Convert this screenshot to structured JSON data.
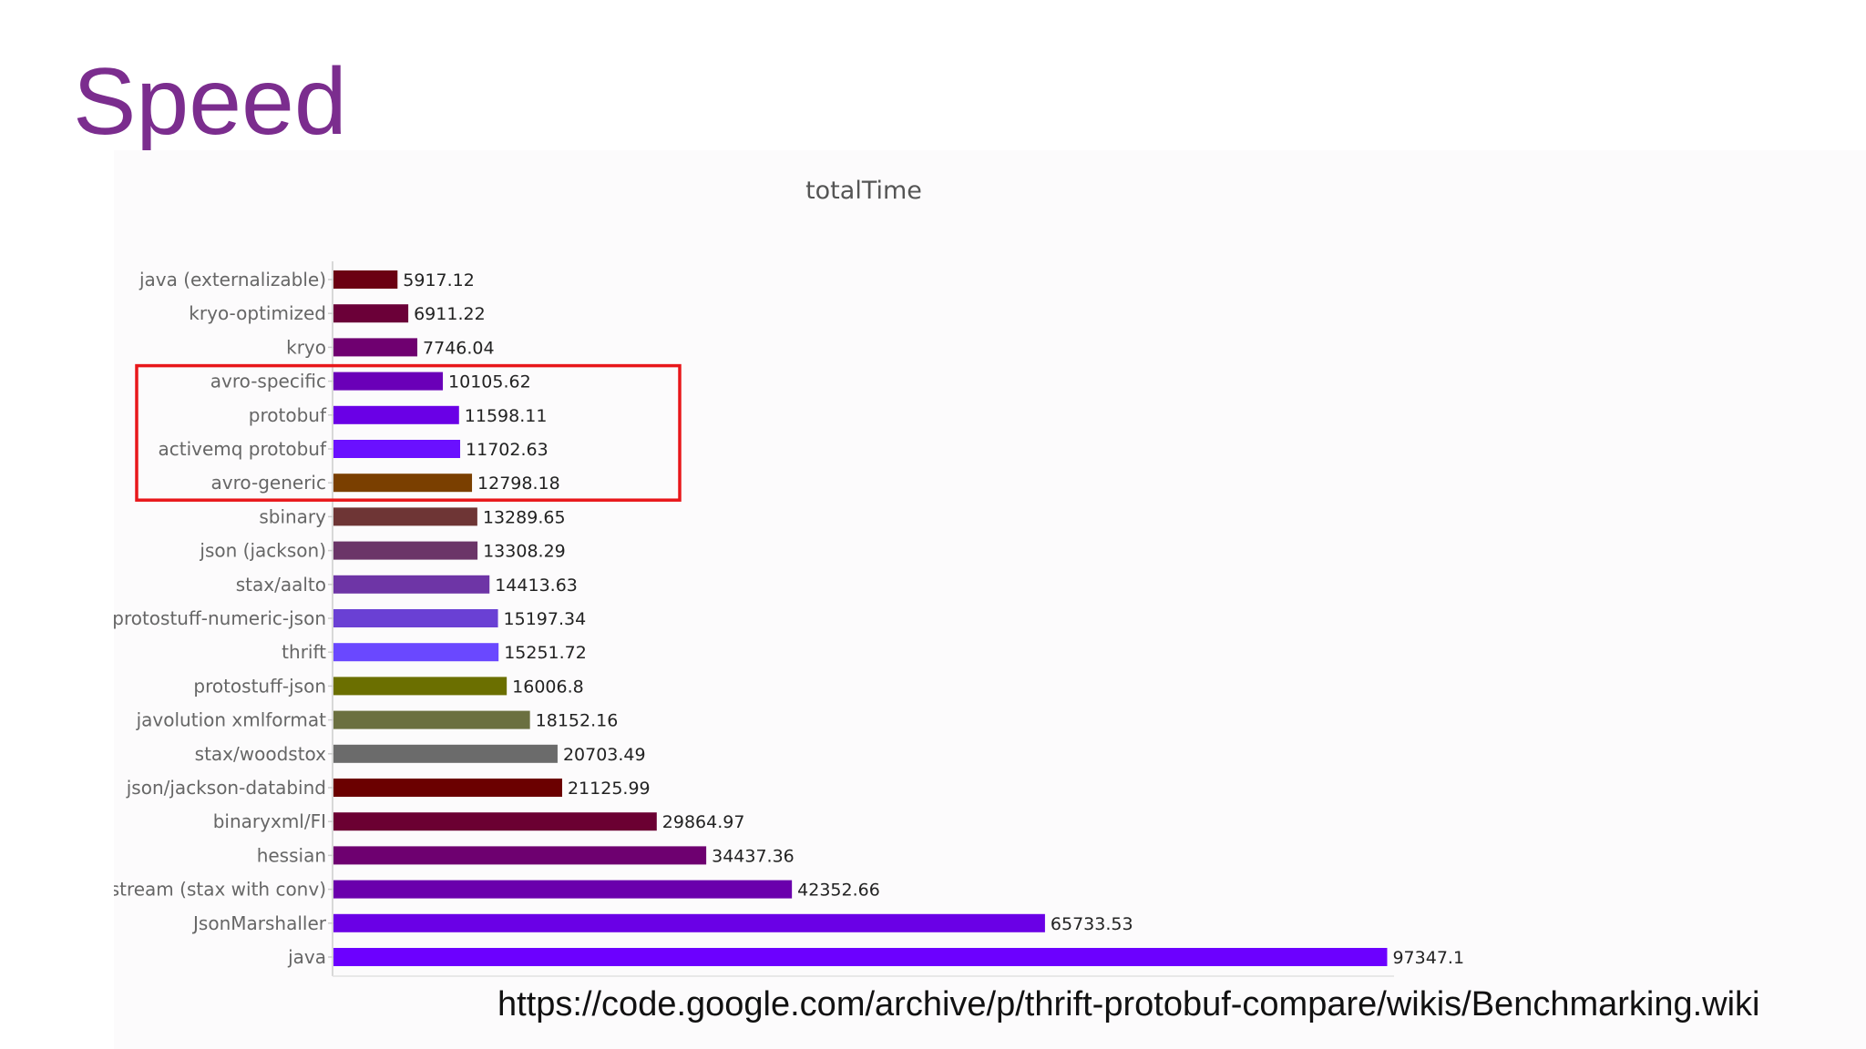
{
  "slide": {
    "title": "Speed",
    "source_url": "https://code.google.com/archive/p/thrift-protobuf-compare/wikis/Benchmarking.wiki"
  },
  "highlight": {
    "color": "#e8171b",
    "from_category": "avro-specific",
    "to_category": "avro-generic"
  },
  "chart_data": {
    "type": "bar",
    "orientation": "horizontal",
    "title": "totalTime",
    "xlabel": "",
    "ylabel": "",
    "xlim": [
      0,
      100000
    ],
    "grid": false,
    "legend": "none",
    "categories": [
      "java (externalizable)",
      "kryo-optimized",
      "kryo",
      "avro-specific",
      "protobuf",
      "activemq protobuf",
      "avro-generic",
      "sbinary",
      "json (jackson)",
      "stax/aalto",
      "protostuff-numeric-json",
      "thrift",
      "protostuff-json",
      "javolution xmlformat",
      "stax/woodstox",
      "json/jackson-databind",
      "binaryxml/FI",
      "hessian",
      "xstream (stax with conv)",
      "JsonMarshaller",
      "java"
    ],
    "values": [
      5917.12,
      6911.22,
      7746.04,
      10105.62,
      11598.11,
      11702.63,
      12798.18,
      13289.65,
      13308.29,
      14413.63,
      15197.34,
      15251.72,
      16006.8,
      18152.16,
      20703.49,
      21125.99,
      29864.97,
      34437.36,
      42352.66,
      65733.53,
      97347.1
    ],
    "value_labels": [
      "5917.12",
      "6911.22",
      "7746.04",
      "10105.62",
      "11598.11",
      "11702.63",
      "12798.18",
      "13289.65",
      "13308.29",
      "14413.63",
      "15197.34",
      "15251.72",
      "16006.8",
      "18152.16",
      "20703.49",
      "21125.99",
      "29864.97",
      "34437.36",
      "42352.66",
      "65733.53",
      "97347.1"
    ],
    "colors": [
      "#6b0012",
      "#6b0038",
      "#6f0070",
      "#6a00b8",
      "#6a00e6",
      "#6a10ff",
      "#7a3f00",
      "#6e3535",
      "#6b3568",
      "#6e35a6",
      "#6a40d4",
      "#6a48ff",
      "#6b6f00",
      "#6b7040",
      "#6b6b6b",
      "#6b0000",
      "#6b0032",
      "#6e0070",
      "#6a00ac",
      "#6a00e6",
      "#6c00ff"
    ]
  }
}
